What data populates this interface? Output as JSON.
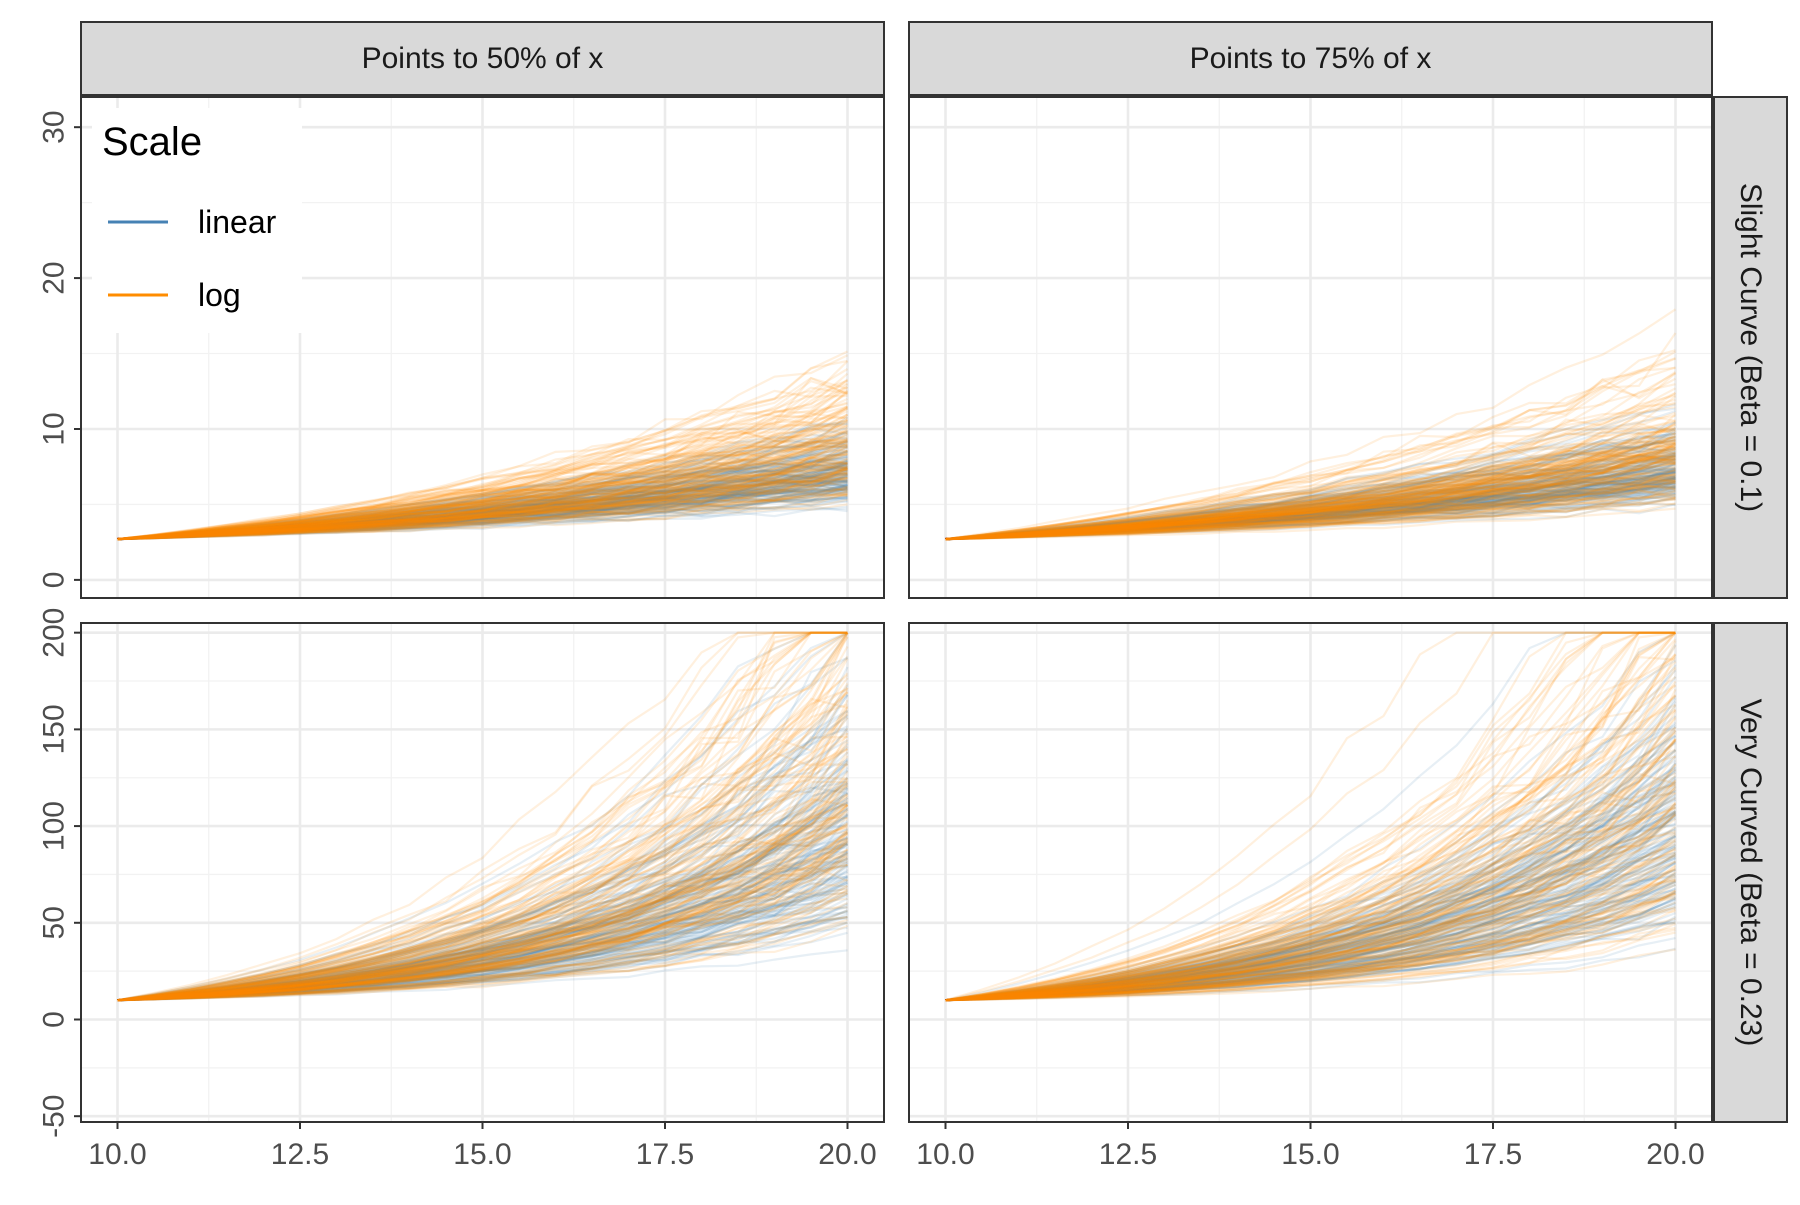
{
  "chart_data": {
    "type": "line",
    "layout": "facet-grid",
    "columns": [
      {
        "id": "p50",
        "label": "Points to 50% of x",
        "frac": 0.5
      },
      {
        "id": "p75",
        "label": "Points to 75% of x",
        "frac": 0.75
      }
    ],
    "rows": [
      {
        "id": "slight",
        "label": "Slight Curve (Beta = 0.1)",
        "ylim": [
          -1.2,
          32
        ],
        "yticks": [
          0,
          10,
          20,
          30
        ],
        "yminor": [
          5,
          15,
          25
        ],
        "start": 2.7,
        "growth": 0.1,
        "cap": 30
      },
      {
        "id": "very",
        "label": "Very Curved (Beta = 0.23)",
        "ylim": [
          -53,
          205
        ],
        "yticks": [
          -50,
          0,
          50,
          100,
          150,
          200
        ],
        "yminor": [
          -25,
          25,
          75,
          125,
          175
        ],
        "start": 10,
        "growth": 0.23,
        "cap": 200
      }
    ],
    "x_axis": {
      "xlim": [
        9.5,
        20.5
      ],
      "ticks": [
        10.0,
        12.5,
        15.0,
        17.5,
        20.0
      ],
      "tick_labels": [
        "10.0",
        "12.5",
        "15.0",
        "17.5",
        "20.0"
      ],
      "minor": [
        11.25,
        13.75,
        16.25,
        18.75
      ]
    },
    "x": [
      10,
      10.5,
      11,
      11.5,
      12,
      12.5,
      13,
      13.5,
      14,
      14.5,
      15,
      15.5,
      16,
      16.5,
      17,
      17.5,
      18,
      18.5,
      19,
      19.5,
      20
    ],
    "series": [
      {
        "name": "linear",
        "color": "#4682b4",
        "lines_per_panel": 150,
        "alpha": 0.13,
        "spread_factor": 0.42
      },
      {
        "name": "log",
        "color": "#ff8c00",
        "lines_per_panel": 150,
        "alpha": 0.13,
        "spread_factor": 0.55
      }
    ],
    "legend": {
      "title": "Scale",
      "entries": [
        "linear",
        "log"
      ],
      "placement": "top-left inside first panel"
    },
    "title": "",
    "xlabel": "",
    "ylabel": "",
    "grid": true
  }
}
